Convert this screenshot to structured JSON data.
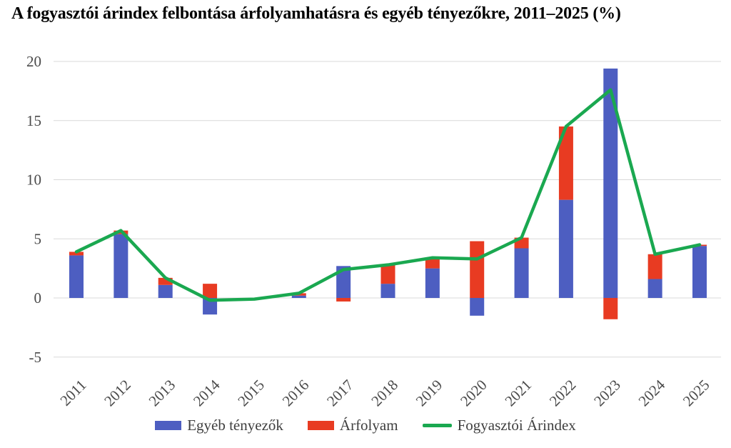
{
  "title": "A fogyasztói árindex felbontása árfolyamhatásra és egyéb tényezőkre, 2011–2025 (%)",
  "colors": {
    "other_factors_bar": "#4D5EC1",
    "exchange_rate_bar": "#E83B22",
    "cpi_line": "#1AA850",
    "gridline": "#D9D9D9",
    "axis_text": "#4A4A4A",
    "title_text": "#000000",
    "background": "#FFFFFF"
  },
  "legend": {
    "items": [
      {
        "label": "Egyéb tényezők",
        "swatch": "bar",
        "color": "#4D5EC1"
      },
      {
        "label": "Árfolyam",
        "swatch": "bar",
        "color": "#E83B22"
      },
      {
        "label": "Fogyasztói Árindex",
        "swatch": "line",
        "color": "#1AA850"
      }
    ]
  },
  "chart_data": {
    "type": "bar",
    "stacked": true,
    "overlay": "line",
    "title": "A fogyasztói árindex felbontása árfolyamhatásra és egyéb tényezőkre, 2011–2025 (%)",
    "categories": [
      "2011",
      "2012",
      "2013",
      "2014",
      "2015",
      "2016",
      "2017",
      "2018",
      "2019",
      "2020",
      "2021",
      "2022",
      "2023",
      "2024",
      "2025"
    ],
    "series": [
      {
        "name": "Egyéb tényezők",
        "kind": "bar",
        "color": "#4D5EC1",
        "values": [
          3.6,
          5.4,
          1.1,
          -1.4,
          0,
          0.2,
          2.7,
          1.2,
          2.5,
          -1.5,
          4.2,
          8.3,
          19.4,
          1.6,
          4.4
        ]
      },
      {
        "name": "Árfolyam",
        "kind": "bar",
        "color": "#E83B22",
        "values": [
          0.3,
          0.3,
          0.6,
          1.2,
          0,
          0.2,
          -0.3,
          1.6,
          0.9,
          4.8,
          0.9,
          6.2,
          -1.8,
          2.1,
          0.1
        ]
      },
      {
        "name": "Fogyasztói Árindex",
        "kind": "line",
        "color": "#1AA850",
        "values": [
          3.9,
          5.7,
          1.7,
          -0.2,
          -0.1,
          0.4,
          2.4,
          2.8,
          3.4,
          3.3,
          5.1,
          14.5,
          17.6,
          3.7,
          4.5
        ]
      }
    ],
    "xlabel": "",
    "ylabel": "",
    "ylim": [
      -5,
      20
    ],
    "yticks": [
      20,
      15,
      10,
      5,
      0,
      -5
    ],
    "grid": true,
    "legend_position": "bottom"
  }
}
